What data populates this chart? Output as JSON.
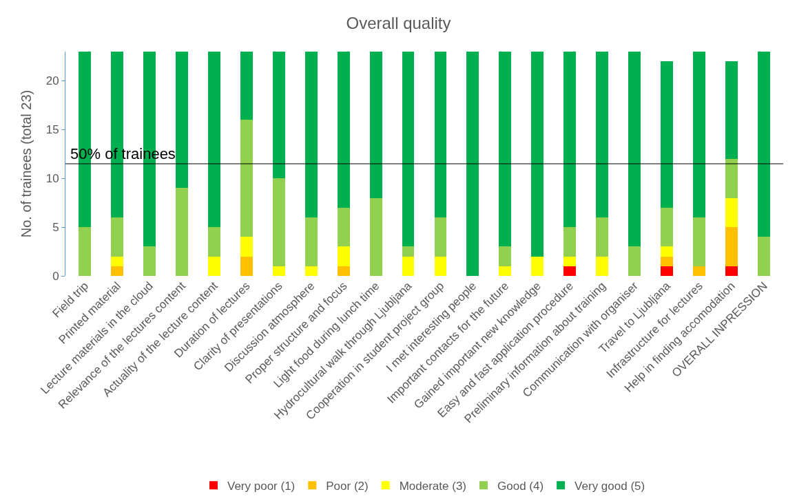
{
  "chart_data": {
    "type": "bar",
    "title": "Overall quality",
    "ylabel": "No. of trainees (total 23)",
    "stacked": true,
    "legend": "bottom",
    "categories": [
      "Field trip",
      "Printed material",
      "Lecture materials in the cloud",
      "Relevance of the lectures content",
      "Actuality of the lecture content",
      "Duration of lectures",
      "Clarity of presentations",
      "Discussion atmosphere",
      "Proper structure and focus",
      "Light food during lunch time",
      "Hydrocultural walk through Ljubljana",
      "Cooperation in student project group",
      "I met interesting people",
      "Important contacts for the future",
      "Gained important new knowledge",
      "Easy and fast application procedure",
      "Preliminary information about training",
      "Communication with organiser",
      "Travel to Ljubljana",
      "Infrastructure for lectures",
      "Help in finding accomodation",
      "OVERALL INPRESSION"
    ],
    "series": [
      {
        "name": "Very poor (1)",
        "color": "#ff0000",
        "values": [
          0,
          0,
          0,
          0,
          0,
          0,
          0,
          0,
          0,
          0,
          0,
          0,
          0,
          0,
          0,
          1,
          0,
          0,
          1,
          0,
          1,
          0
        ]
      },
      {
        "name": "Poor (2)",
        "color": "#ffc000",
        "values": [
          0,
          1,
          0,
          0,
          0,
          2,
          0,
          0,
          1,
          0,
          0,
          0,
          0,
          0,
          0,
          0,
          0,
          0,
          1,
          1,
          4,
          0
        ]
      },
      {
        "name": "Moderate (3)",
        "color": "#ffff00",
        "values": [
          0,
          1,
          0,
          0,
          2,
          2,
          1,
          1,
          2,
          0,
          2,
          2,
          0,
          1,
          2,
          1,
          2,
          0,
          1,
          0,
          3,
          0
        ]
      },
      {
        "name": "Good (4)",
        "color": "#92d050",
        "values": [
          5,
          4,
          3,
          9,
          3,
          12,
          9,
          5,
          4,
          8,
          1,
          4,
          0,
          2,
          0,
          3,
          4,
          3,
          4,
          5,
          4,
          4
        ]
      },
      {
        "name": "Very good (5)",
        "color": "#00b050",
        "values": [
          18,
          17,
          20,
          14,
          18,
          7,
          13,
          17,
          16,
          15,
          20,
          17,
          23,
          20,
          21,
          18,
          17,
          20,
          15,
          17,
          10,
          19
        ]
      }
    ],
    "ylim": [
      0,
      23
    ],
    "yticks": [
      0,
      5,
      10,
      15,
      20
    ],
    "ref_lines": [
      {
        "axis": "y",
        "value": 11.5,
        "label": "50% of trainees",
        "color": "#000000"
      }
    ]
  }
}
